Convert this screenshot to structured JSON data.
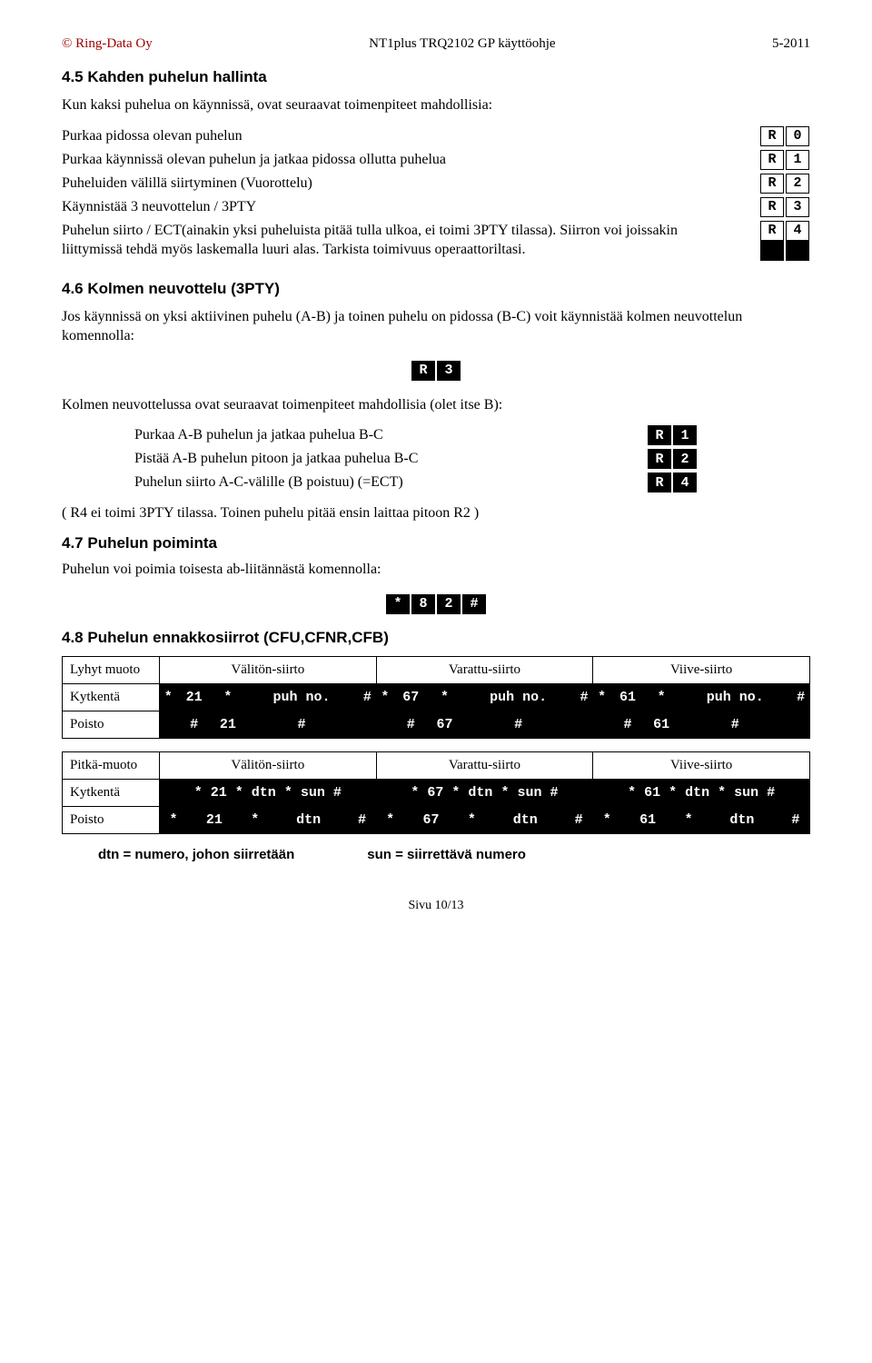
{
  "header": {
    "left": "© Ring-Data Oy",
    "center": "NT1plus TRQ2102 GP käyttöohje",
    "right": "5-2011"
  },
  "s45": {
    "title": "4.5   Kahden puhelun hallinta",
    "intro": "Kun kaksi puhelua on käynnissä, ovat seuraavat toimenpiteet mahdollisia:",
    "rows": [
      {
        "label": "Purkaa pidossa olevan puhelun",
        "k1": "R",
        "k2": "0"
      },
      {
        "label": "Purkaa käynnissä olevan puhelun ja jatkaa pidossa ollutta puhelua",
        "k1": "R",
        "k2": "1"
      },
      {
        "label": "Puheluiden välillä siirtyminen (Vuorottelu)",
        "k1": "R",
        "k2": "2"
      },
      {
        "label": "Käynnistää 3 neuvottelun / 3PTY",
        "k1": "R",
        "k2": "3"
      },
      {
        "label": "Puhelun siirto / ECT(ainakin yksi puheluista pitää tulla ulkoa, ei toimi 3PTY tilassa). Siirron voi joissakin liittymissä tehdä myös laskemalla luuri alas. Tarkista toimivuus operaattoriltasi.",
        "k1": "R",
        "k2": "4"
      }
    ]
  },
  "s46": {
    "title": "4.6   Kolmen neuvottelu (3PTY)",
    "intro": "Jos käynnissä on yksi aktiivinen puhelu (A-B) ja toinen puhelu on pidossa (B-C) voit käynnistää kolmen neuvottelun komennolla:",
    "key1": "R",
    "key2": "3",
    "after": "Kolmen neuvottelussa ovat seuraavat toimenpiteet mahdollisia (olet itse B):",
    "rows": [
      {
        "label": "Purkaa A-B puhelun ja jatkaa puhelua B-C",
        "k1": "R",
        "k2": "1"
      },
      {
        "label": "Pistää A-B puhelun pitoon ja jatkaa puhelua B-C",
        "k1": "R",
        "k2": "2"
      },
      {
        "label": "Puhelun siirto A-C-välille (B poistuu) (=ECT)",
        "k1": "R",
        "k2": "4"
      }
    ],
    "note": "( R4 ei toimi 3PTY tilassa. Toinen puhelu pitää ensin laittaa pitoon R2 )"
  },
  "s47": {
    "title": "4.7   Puhelun poiminta",
    "intro": "Puhelun voi poimia toisesta ab-liitännästä komennolla:",
    "keys": [
      "*",
      "8",
      "2",
      "#"
    ]
  },
  "s48": {
    "title": "4.8   Puhelun ennakkosiirrot (CFU,CFNR,CFB)",
    "table1": {
      "rowlabel_top": "Lyhyt muoto",
      "heads": [
        "Välitön-siirto",
        "Varattu-siirto",
        "Viive-siirto"
      ],
      "kytkenta_label": "Kytkentä",
      "kytkenta": [
        [
          "*",
          "21",
          "*",
          "puh no.",
          "#"
        ],
        [
          "*",
          "67",
          "*",
          "puh no.",
          "#"
        ],
        [
          "*",
          "61",
          "*",
          "puh no.",
          "#"
        ]
      ],
      "poisto_label": "Poisto",
      "poisto": [
        [
          "#",
          "21",
          "#"
        ],
        [
          "#",
          "67",
          "#"
        ],
        [
          "#",
          "61",
          "#"
        ]
      ]
    },
    "table2": {
      "rowlabel_top": "Pitkä-muoto",
      "heads": [
        "Välitön-siirto",
        "Varattu-siirto",
        "Viive-siirto"
      ],
      "kytkenta_label": "Kytkentä",
      "kytkenta_strings": [
        "* 21 * dtn * sun #",
        "* 67 * dtn * sun #",
        "* 61 * dtn * sun #"
      ],
      "poisto_label": "Poisto",
      "poisto": [
        [
          "*",
          "21",
          "*",
          "dtn",
          "#"
        ],
        [
          "*",
          "67",
          "*",
          "dtn",
          "#"
        ],
        [
          "*",
          "61",
          "*",
          "dtn",
          "#"
        ]
      ]
    },
    "legend1": "dtn = numero, johon siirretään",
    "legend2": "sun = siirrettävä numero"
  },
  "footer": "Sivu 10/13"
}
